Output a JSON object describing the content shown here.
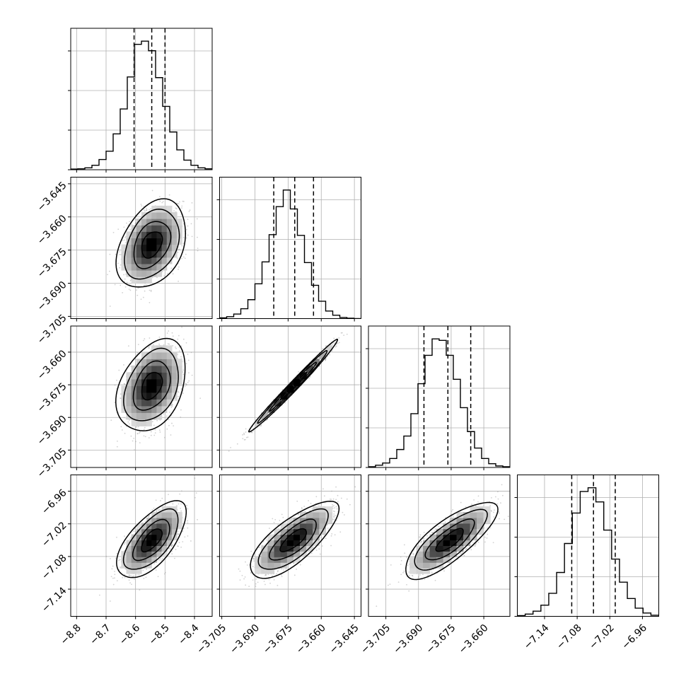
{
  "chart_data": {
    "type": "corner",
    "num_params": 4,
    "grid": true,
    "style": {
      "hist_color": "#000000",
      "contour_color": "#000000",
      "scatter_color": "#9a9a9a",
      "grid_color": "#b0b0b0",
      "quantile_line_style": "dashed"
    },
    "params": [
      {
        "mean": -8.545,
        "sd": 0.05,
        "quantiles": [
          -8.605,
          -8.545,
          -8.5
        ],
        "range": [
          -8.82,
          -8.34
        ],
        "ticks": [
          -8.8,
          -8.7,
          -8.6,
          -8.5,
          -8.4
        ],
        "tick_labels": [
          "−8.8",
          "−8.7",
          "−8.6",
          "−8.5",
          "−8.4"
        ],
        "hist_counts": [
          2,
          3,
          6,
          14,
          32,
          58,
          112,
          190,
          290,
          392,
          402,
          372,
          288,
          198,
          118,
          62,
          30,
          14,
          6,
          3
        ]
      },
      {
        "mean": -3.6725,
        "sd": 0.0085,
        "quantiles": [
          -3.6815,
          -3.672,
          -3.6635
        ],
        "range": [
          -3.706,
          -3.642
        ],
        "ticks": [
          -3.705,
          -3.69,
          -3.675,
          -3.66,
          -3.645
        ],
        "tick_labels": [
          "−3.705",
          "−3.690",
          "−3.675",
          "−3.660",
          "−3.645"
        ],
        "hist_counts": [
          2,
          5,
          12,
          26,
          50,
          92,
          150,
          222,
          296,
          340,
          290,
          220,
          148,
          88,
          46,
          20,
          9,
          3,
          1,
          0
        ]
      },
      {
        "mean": -3.6755,
        "sd": 0.009,
        "quantiles": [
          -3.6875,
          -3.6765,
          -3.666
        ],
        "range": [
          -3.713,
          -3.648
        ],
        "ticks": [
          -3.705,
          -3.69,
          -3.675,
          -3.66
        ],
        "tick_labels": [
          "−3.705",
          "−3.690",
          "−3.675",
          "−3.660"
        ],
        "hist_counts": [
          1,
          3,
          6,
          12,
          24,
          42,
          72,
          112,
          150,
          172,
          170,
          150,
          118,
          80,
          48,
          26,
          12,
          5,
          2,
          1
        ]
      },
      {
        "mean": -7.05,
        "sd": 0.03,
        "quantiles": [
          -7.09,
          -7.05,
          -7.01
        ],
        "range": [
          -7.19,
          -6.93
        ],
        "ticks": [
          -7.14,
          -7.08,
          -7.02,
          -6.96
        ],
        "tick_labels": [
          "−7.14",
          "−7.08",
          "−7.02",
          "−6.96"
        ],
        "hist_counts": [
          2,
          6,
          14,
          30,
          62,
          118,
          196,
          278,
          336,
          346,
          308,
          232,
          154,
          92,
          48,
          22,
          9,
          3
        ]
      }
    ],
    "correlations": [
      [
        1.0,
        0.35,
        0.35,
        0.65
      ],
      [
        0.35,
        1.0,
        0.99,
        0.75
      ],
      [
        0.35,
        0.99,
        1.0,
        0.78
      ],
      [
        0.65,
        0.75,
        0.78,
        1.0
      ]
    ]
  }
}
